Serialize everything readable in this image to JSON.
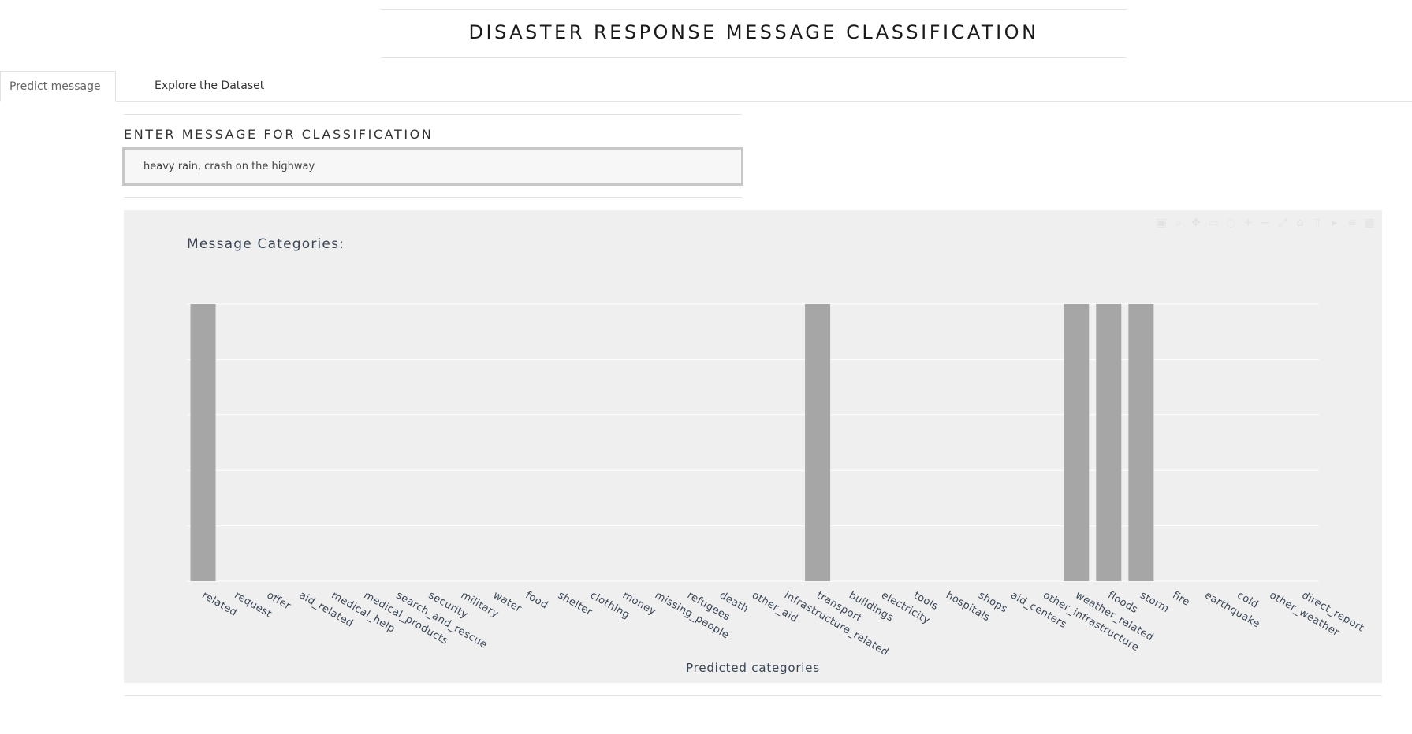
{
  "header": {
    "title": "DISASTER RESPONSE MESSAGE CLASSIFICATION"
  },
  "tabs": [
    {
      "label": "Predict message",
      "active": true
    },
    {
      "label": "Explore the Dataset",
      "active": false
    }
  ],
  "form": {
    "label": "ENTER MESSAGE FOR CLASSIFICATION",
    "value": "heavy rain, crash on the highway"
  },
  "colors": {
    "bar": "#a6a6a6",
    "panel_bg": "#efefef",
    "grid": "#ffffff",
    "text": "#3a4556"
  },
  "modebar_icons": [
    "camera-icon",
    "zoom-icon",
    "pan-icon",
    "box-select-icon",
    "lasso-icon",
    "zoom-in-icon",
    "zoom-out-icon",
    "autoscale-icon",
    "reset-axes-icon",
    "spike-lines-icon",
    "hover-closest-icon",
    "hover-compare-icon",
    "plotly-logo-icon"
  ],
  "chart_data": {
    "type": "bar",
    "title": "Message Categories:",
    "xlabel": "Predicted categories",
    "ylabel": "",
    "ylim": [
      0,
      1
    ],
    "grid": true,
    "categories": [
      "related",
      "request",
      "offer",
      "aid_related",
      "medical_help",
      "medical_products",
      "search_and_rescue",
      "security",
      "military",
      "water",
      "food",
      "shelter",
      "clothing",
      "money",
      "missing_people",
      "refugees",
      "death",
      "other_aid",
      "infrastructure_related",
      "transport",
      "buildings",
      "electricity",
      "tools",
      "hospitals",
      "shops",
      "aid_centers",
      "other_infrastructure",
      "weather_related",
      "floods",
      "storm",
      "fire",
      "earthquake",
      "cold",
      "other_weather",
      "direct_report"
    ],
    "values": [
      1,
      0,
      0,
      0,
      0,
      0,
      0,
      0,
      0,
      0,
      0,
      0,
      0,
      0,
      0,
      0,
      0,
      0,
      0,
      1,
      0,
      0,
      0,
      0,
      0,
      0,
      0,
      1,
      1,
      1,
      0,
      0,
      0,
      0,
      0
    ]
  }
}
